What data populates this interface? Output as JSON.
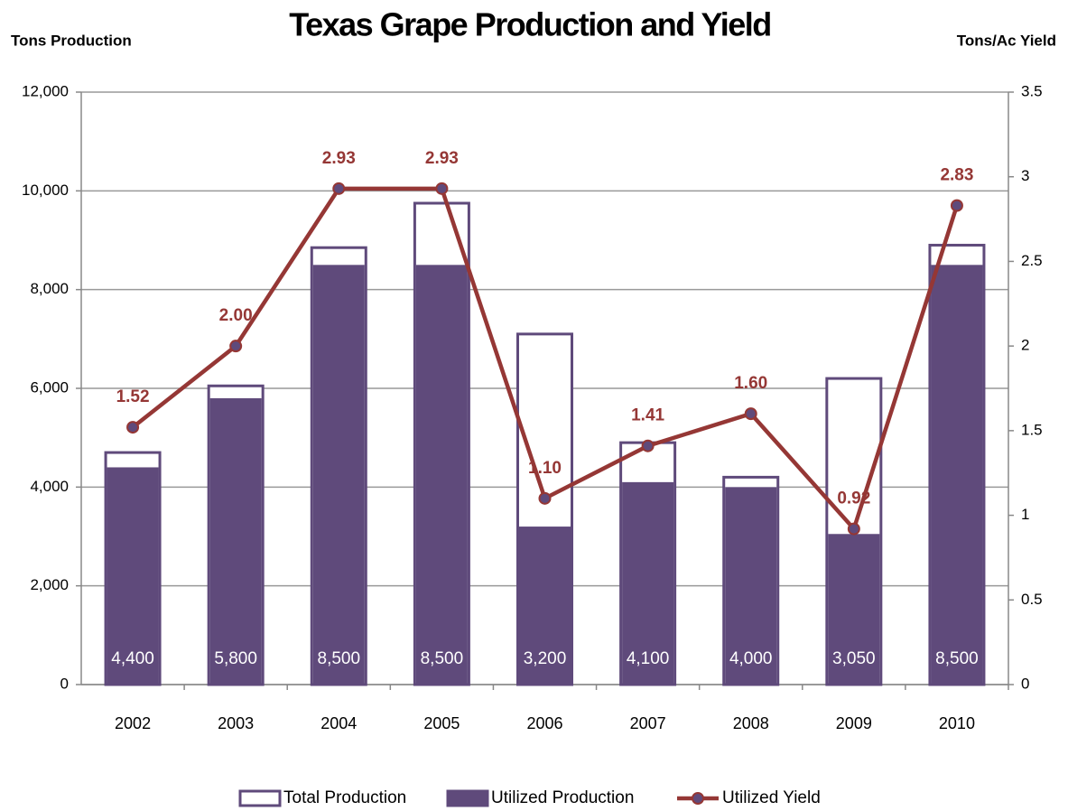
{
  "chart_data": {
    "type": "bar",
    "title": "Texas Grape Production and Yield",
    "y_label": "Tons  Production",
    "y2_label": "Tons/Ac Yield",
    "categories": [
      "2002",
      "2003",
      "2004",
      "2005",
      "2006",
      "2007",
      "2008",
      "2009",
      "2010"
    ],
    "series": [
      {
        "name": "Total Production",
        "type": "bar",
        "style": "outline",
        "color": "#5f4a7b",
        "values": [
          4700,
          6050,
          8850,
          9750,
          7100,
          4900,
          4200,
          6200,
          8900
        ]
      },
      {
        "name": "Utilized Production",
        "type": "bar",
        "style": "filled",
        "color": "#5f4a7b",
        "values": [
          4400,
          5800,
          8500,
          8500,
          3200,
          4100,
          4000,
          3050,
          8500
        ],
        "value_labels": [
          "4,400",
          "5,800",
          "8,500",
          "8,500",
          "3,200",
          "4,100",
          "4,000",
          "3,050",
          "8,500"
        ]
      },
      {
        "name": "Utilized Yield",
        "type": "line",
        "axis": "y2",
        "color": "#953735",
        "values": [
          1.52,
          2.0,
          2.93,
          2.93,
          1.1,
          1.41,
          1.6,
          0.92,
          2.83
        ],
        "value_labels": [
          "1.52",
          "2.00",
          "2.93",
          "2.93",
          "1.10",
          "1.41",
          "1.60",
          "0.92",
          "2.83"
        ]
      }
    ],
    "ylim": [
      0,
      12000
    ],
    "yticks": [
      0,
      {
        "value": 2000,
        "label": "2,000"
      },
      {
        "value": 4000,
        "label": "4,000"
      },
      {
        "value": 6000,
        "label": "6,000"
      },
      {
        "value": 8000,
        "label": "8,000"
      },
      {
        "value": 10000,
        "label": "10,000"
      },
      {
        "value": 12000,
        "label": "12,000"
      }
    ],
    "y2lim": [
      0,
      3.5
    ],
    "y2ticks": [
      0,
      0.5,
      1,
      1.5,
      2,
      2.5,
      3,
      3.5
    ],
    "grid": true,
    "legend": "bottom"
  }
}
